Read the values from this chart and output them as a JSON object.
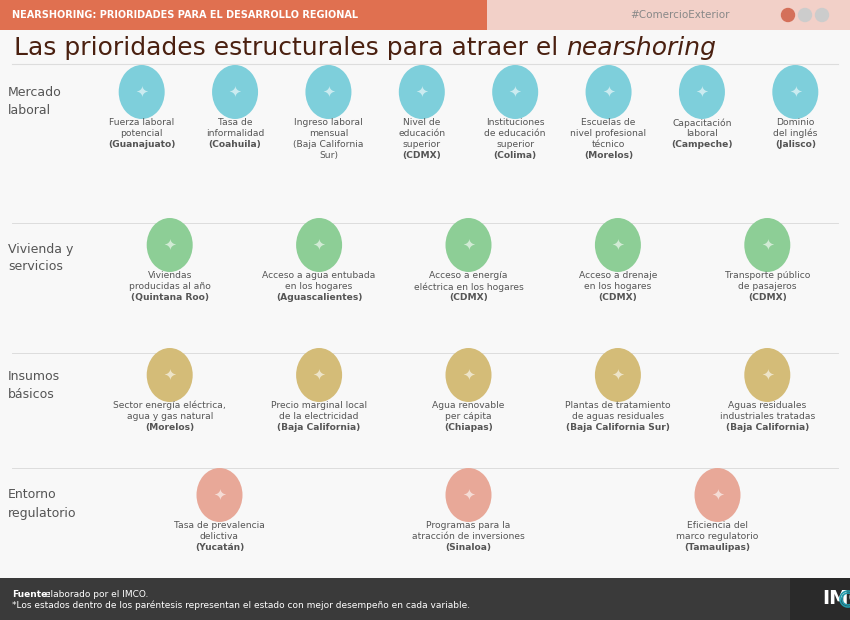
{
  "title_normal": "Las prioridades estructurales para atraer el ",
  "title_italic": "nearshoring",
  "header_text": "NEARSHORING: PRIORIDADES PARA EL DESARROLLO REGIONAL",
  "hashtag": "#ComercioExterior",
  "header_bg": "#E07050",
  "header_light_bg": "#F2D0C8",
  "bg_color": "#F8F8F8",
  "title_color": "#4A2010",
  "footer_bg": "#3A3A3A",
  "footer_bg2": "#2A2A2A",
  "footer_text1_bold": "Fuente:",
  "footer_text1_rest": " elaborado por el IMCO.",
  "footer_text2": "*Los estados dentro de los paréntesis representan el estado con mejor desempeño en cada variable.",
  "imco_color": "#FFFFFF",
  "dot_colors": [
    "#D4705A",
    "#CCCCCC",
    "#CCCCCC"
  ],
  "sep_color": "#DDDDDD",
  "label_color": "#555555",
  "item_text_color": "#555555",
  "sections": [
    {
      "label": "Mercado\nlaboral",
      "icon_color": "#7ECFDB",
      "items": [
        "Fuerza laboral\npotencial\n(Guanajuato)",
        "Tasa de\ninformalidad\n(Coahuila)",
        "Ingreso laboral\nmensual\n(Baja California\nSur)",
        "Nivel de\neducación\nsuperior\n(CDMX)",
        "Instituciones\nde educación\nsuperior\n(Colima)",
        "Escuelas de\nnivel profesional\ntécnico\n(Morelos)",
        "Capacitación\nlaboral\n(Campeche)",
        "Dominio\ndel inglés\n(Jalisco)"
      ]
    },
    {
      "label": "Vivienda y\nservicios",
      "icon_color": "#8DCE96",
      "items": [
        "Viviendas\nproducidas al año\n(Quintana Roo)",
        "Acceso a agua entubada\nen los hogares\n(Aguascalientes)",
        "Acceso a energía\neléctrica en los hogares\n(CDMX)",
        "Acceso a drenaje\nen los hogares\n(CDMX)",
        "Transporte público\nde pasajeros\n(CDMX)"
      ]
    },
    {
      "label": "Insumos\nbásicos",
      "icon_color": "#D4BC78",
      "items": [
        "Sector energía eléctrica,\nagua y gas natural\n(Morelos)",
        "Precio marginal local\nde la electricidad\n(Baja California)",
        "Agua renovable\nper cápita\n(Chiapas)",
        "Plantas de tratamiento\nde aguas residuales\n(Baja California Sur)",
        "Aguas residuales\nindustriales tratadas\n(Baja California)"
      ]
    },
    {
      "label": "Entorno\nregulatorio",
      "icon_color": "#E8A898",
      "items": [
        "Tasa de prevalencia\ndelictiva\n(Yucatán)",
        "Programas para la\natracción de inversiones\n(Sinaloa)",
        "Eficiencia del\nmarco regulatorio\n(Tamaulipas)"
      ]
    }
  ]
}
